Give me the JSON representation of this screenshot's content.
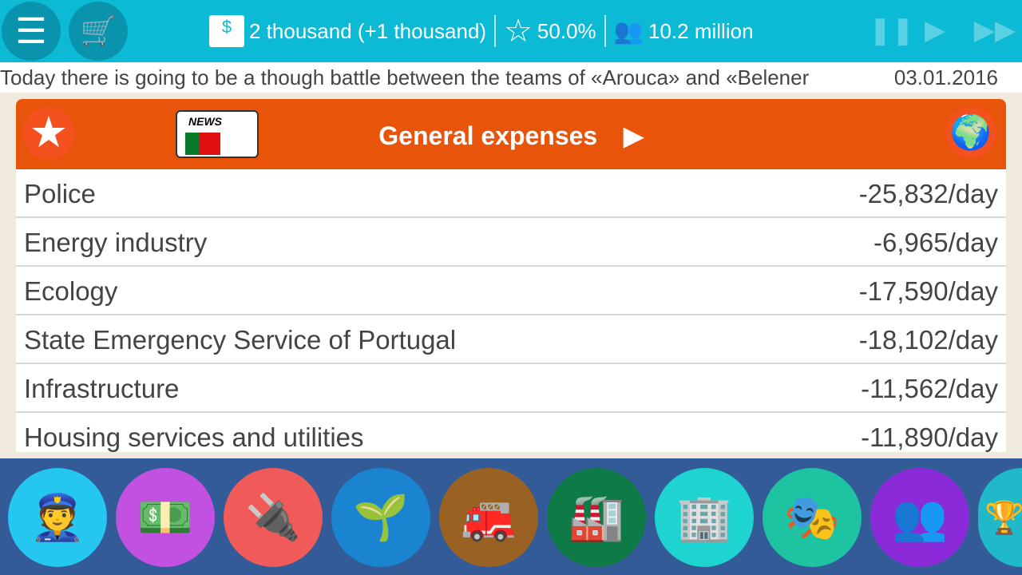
{
  "header": {
    "money": "2 thousand (+1 thousand)",
    "rating": "50.0%",
    "population": "10.2 million"
  },
  "ticker": {
    "text": "Today there is going to be a though battle between the teams of «Arouca» and «Belener",
    "date": "03.01.2016"
  },
  "panel": {
    "title": "General expenses",
    "news_label": "NEWS",
    "rows": [
      {
        "name": "Police",
        "value": "-25,832/day"
      },
      {
        "name": "Energy industry",
        "value": "-6,965/day"
      },
      {
        "name": "Ecology",
        "value": "-17,590/day"
      },
      {
        "name": "State Emergency Service of Portugal",
        "value": "-18,102/day"
      },
      {
        "name": "Infrastructure",
        "value": "-11,562/day"
      },
      {
        "name": "Housing services and utilities",
        "value": "-11,890/day"
      }
    ]
  },
  "categories": [
    {
      "icon": "police-icon",
      "color": "#25c6ef"
    },
    {
      "icon": "finance-icon",
      "color": "#c251e2"
    },
    {
      "icon": "energy-plug-icon",
      "color": "#f05a58"
    },
    {
      "icon": "ecology-plant-icon",
      "color": "#1a84d0"
    },
    {
      "icon": "fire-station-icon",
      "color": "#9a6222"
    },
    {
      "icon": "factory-icon",
      "color": "#0e7b46"
    },
    {
      "icon": "housing-building-icon",
      "color": "#1ed4d0"
    },
    {
      "icon": "theater-icon",
      "color": "#1ec3a2"
    },
    {
      "icon": "people-icon",
      "color": "#8a2ad8"
    },
    {
      "icon": "trophy-icon",
      "color": "#1fb9c9"
    }
  ]
}
